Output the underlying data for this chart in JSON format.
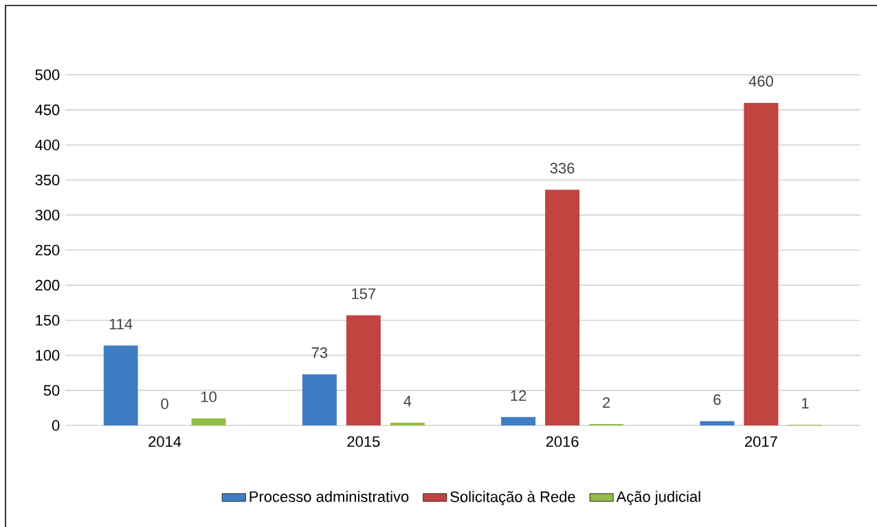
{
  "chart_data": {
    "type": "bar",
    "categories": [
      "2014",
      "2015",
      "2016",
      "2017"
    ],
    "series": [
      {
        "name": "Processo administrativo",
        "color": "#3f7cc4",
        "values": [
          114,
          73,
          12,
          6
        ]
      },
      {
        "name": "Solicitação à Rede",
        "color": "#c0443f",
        "values": [
          0,
          157,
          336,
          460
        ]
      },
      {
        "name": "Ação judicial",
        "color": "#94bb48",
        "values": [
          10,
          4,
          2,
          1
        ]
      }
    ],
    "ylim": [
      0,
      500
    ],
    "yticks": [
      0,
      50,
      100,
      150,
      200,
      250,
      300,
      350,
      400,
      450,
      500
    ],
    "grid": "y",
    "legend": "bottom",
    "data_labels": true
  }
}
